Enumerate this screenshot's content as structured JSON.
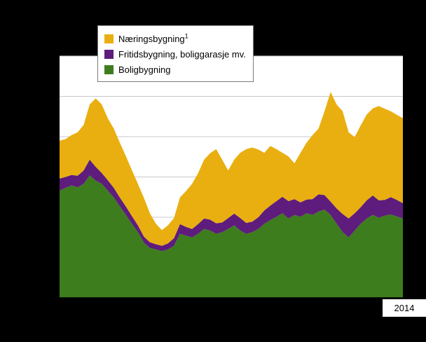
{
  "figure": {
    "background_color": "#000000",
    "plot_background_color": "#ffffff",
    "gridline_color": "#c8c8c8",
    "axis_color": "#000000"
  },
  "legend": {
    "items": [
      {
        "label": "Næringsbygning",
        "sup": "1",
        "color": "#e9af10"
      },
      {
        "label": "Fritidsbygning, boliggarasje mv.",
        "sup": "",
        "color": "#5e1c7c"
      },
      {
        "label": "Boligbygning",
        "sup": "",
        "color": "#3e7d1d"
      }
    ]
  },
  "x_axis": {
    "last_tick_label": "2014"
  },
  "chart_data": {
    "type": "area",
    "stacked": true,
    "title": "",
    "xlabel": "",
    "ylabel": "",
    "ylim": [
      0,
      600
    ],
    "grid_step": 100,
    "x_tick_count": 58,
    "x_last_tick_label": "2014",
    "legend_position": "top-left",
    "series": [
      {
        "name": "Boligbygning",
        "color": "#3e7d1d",
        "values": [
          266,
          273,
          279,
          274,
          283,
          304,
          291,
          283,
          266,
          249,
          227,
          206,
          184,
          163,
          137,
          124,
          120,
          116,
          120,
          129,
          159,
          154,
          150,
          159,
          171,
          167,
          159,
          163,
          171,
          180,
          167,
          159,
          163,
          171,
          184,
          193,
          201,
          210,
          197,
          206,
          201,
          210,
          206,
          214,
          219,
          206,
          184,
          163,
          150,
          167,
          184,
          197,
          206,
          199,
          204,
          207,
          202,
          197
        ]
      },
      {
        "name": "Fritidsbygning, boliggarasje mv.",
        "color": "#5e1c7c",
        "values": [
          30,
          27,
          26,
          29,
          33,
          39,
          34,
          27,
          26,
          24,
          22,
          21,
          19,
          17,
          15,
          14,
          13,
          13,
          15,
          19,
          24,
          22,
          21,
          24,
          26,
          27,
          26,
          24,
          27,
          29,
          31,
          27,
          26,
          29,
          33,
          36,
          39,
          41,
          43,
          39,
          36,
          34,
          39,
          43,
          36,
          33,
          38,
          45,
          47,
          43,
          41,
          45,
          48,
          43,
          39,
          43,
          41,
          38
        ]
      },
      {
        "name": "Næringsbygning",
        "color": "#e9af10",
        "values": [
          94,
          94,
          99,
          108,
          113,
          137,
          170,
          170,
          154,
          147,
          136,
          125,
          114,
          103,
          96,
          72,
          51,
          39,
          45,
          50,
          66,
          89,
          112,
          126,
          146,
          165,
          184,
          156,
          118,
          134,
          162,
          183,
          184,
          168,
          143,
          148,
          129,
          109,
          111,
          89,
          123,
          141,
          159,
          163,
          208,
          272,
          258,
          255,
          214,
          189,
          203,
          213,
          216,
          234,
          226,
          213,
          211,
          211
        ]
      }
    ]
  }
}
